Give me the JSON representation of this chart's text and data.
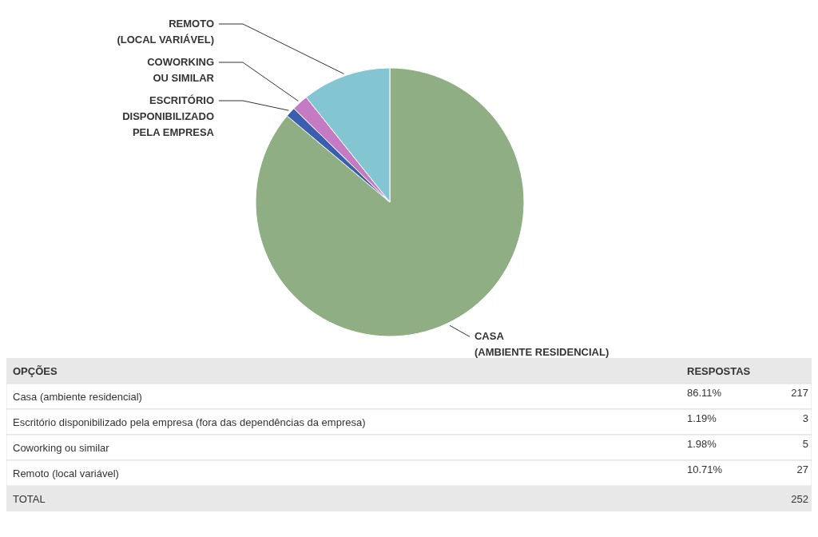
{
  "chart_data": {
    "type": "pie",
    "categories": [
      "CASA\n(AMBIENTE RESIDENCIAL)",
      "ESCRITÓRIO\nDISPONIBILIZADO\nPELA EMPRESA",
      "COWORKING\nOU SIMILAR",
      "REMOTO\n(LOCAL VARIÁVEL)"
    ],
    "values": [
      86.11,
      1.19,
      1.98,
      10.71
    ],
    "colors": [
      "#8fae83",
      "#3a5fae",
      "#c47bc4",
      "#83c6d2"
    ],
    "annotations": [
      "OPÇÕES",
      "RESPOSTAS",
      "Casa (ambiente residencial)",
      "Escritório disponibilizado pela empresa (fora das dependências da empresa)",
      "Coworking ou similar",
      "Remoto (local variável)",
      "217",
      "3",
      "5",
      "27",
      "TOTAL",
      "252",
      "86.11%",
      "1.19%",
      "1.98%",
      "10.71%"
    ]
  }
}
